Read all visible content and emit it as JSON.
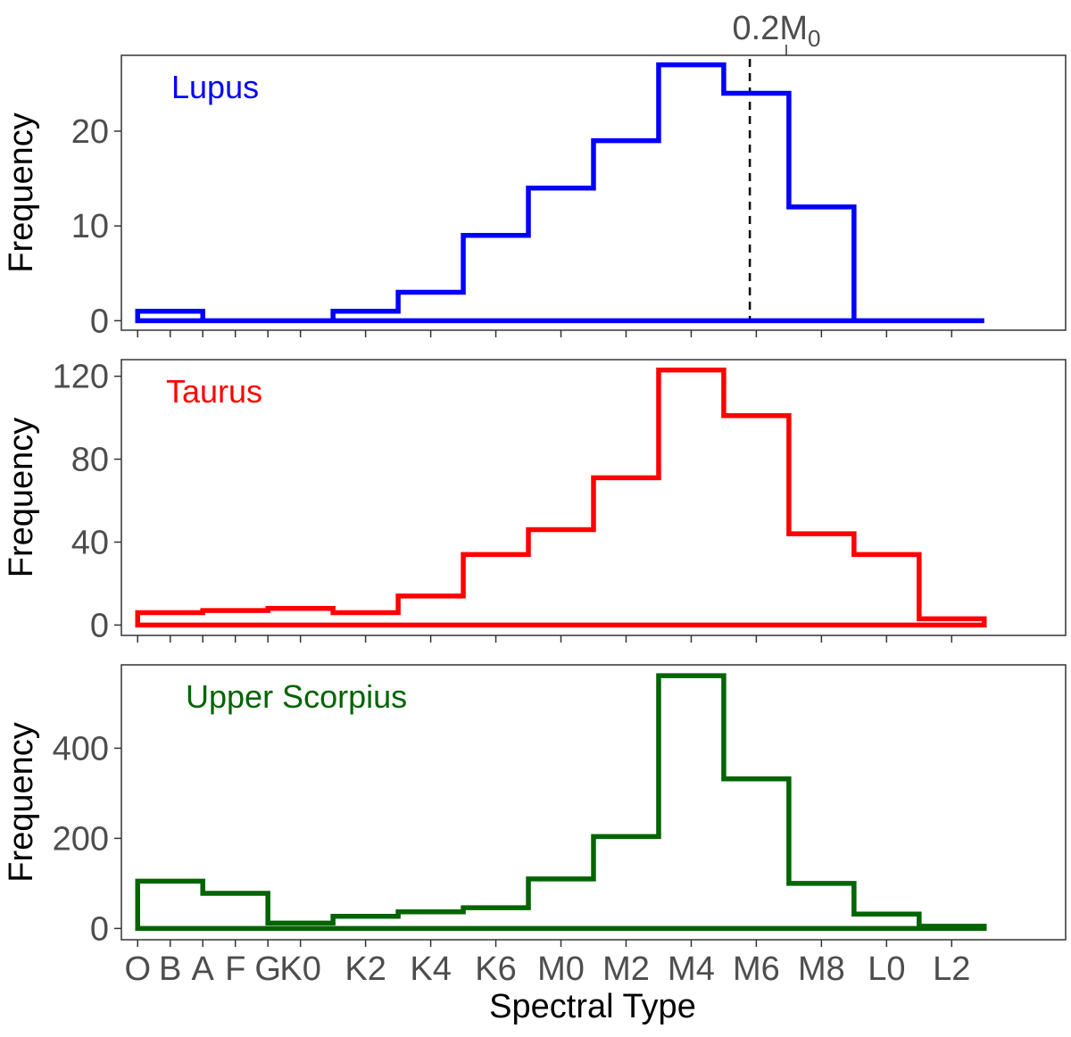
{
  "chart_data": {
    "type": "line",
    "subtype": "step-histogram",
    "xlabel": "Spectral Type",
    "x_tick_labels": [
      "O",
      "B",
      "A",
      "F",
      "G",
      "K0",
      "K2",
      "K4",
      "K6",
      "M0",
      "M2",
      "M4",
      "M6",
      "M8",
      "L0",
      "L2"
    ],
    "x_tick_positions": [
      0,
      1,
      2,
      3,
      4,
      5,
      7,
      9,
      11,
      13,
      15,
      17,
      19,
      21,
      23,
      25
    ],
    "xlim": [
      -0.5,
      28.5
    ],
    "bin_edges": [
      0,
      2,
      4,
      6,
      8,
      10,
      12,
      14,
      16,
      18,
      20,
      22,
      24,
      26
    ],
    "reference_line": {
      "label": "0.2M",
      "label_sub": "0",
      "x": 18.8,
      "style": "dashed"
    },
    "panels": [
      {
        "name": "Lupus",
        "color": "#0000ff",
        "ylabel": "Frequency",
        "ylim": [
          -1,
          28
        ],
        "yticks": [
          0,
          10,
          20
        ],
        "values": [
          1,
          0,
          0,
          1,
          3,
          9,
          14,
          19,
          27,
          24,
          12,
          0,
          0
        ]
      },
      {
        "name": "Taurus",
        "color": "#ff0000",
        "ylabel": "Frequency",
        "ylim": [
          -5,
          128
        ],
        "yticks": [
          0,
          40,
          80,
          120
        ],
        "values": [
          6,
          7,
          8,
          6,
          14,
          34,
          46,
          71,
          123,
          101,
          44,
          34,
          3
        ]
      },
      {
        "name": "Upper Scorpius",
        "color": "#006400",
        "ylabel": "Frequency",
        "ylim": [
          -25,
          585
        ],
        "yticks": [
          0,
          200,
          400
        ],
        "values": [
          105,
          78,
          12,
          27,
          37,
          46,
          110,
          204,
          561,
          332,
          100,
          32,
          5
        ]
      }
    ]
  }
}
